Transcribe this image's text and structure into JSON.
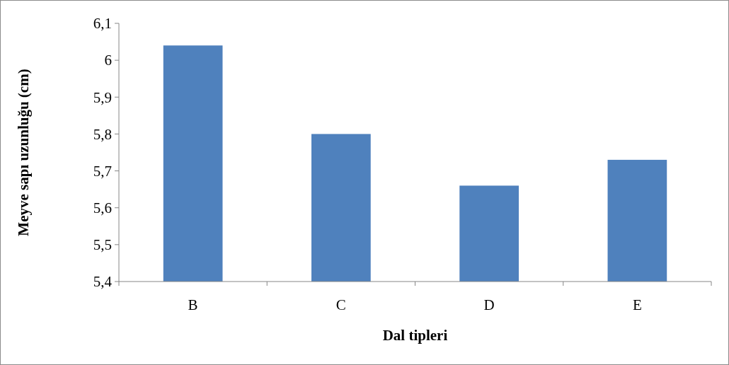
{
  "chart_data": {
    "type": "bar",
    "xlabel": "Dal tipleri",
    "ylabel": "Meyve sapı uzunluğu (cm)",
    "categories": [
      "B",
      "C",
      "D",
      "E"
    ],
    "values": [
      6.04,
      5.8,
      5.66,
      5.73
    ],
    "color": "#4f81bd",
    "ylim": [
      5.4,
      6.1
    ],
    "yticks": [
      {
        "value": 5.4,
        "label": "5,4"
      },
      {
        "value": 5.5,
        "label": "5,5"
      },
      {
        "value": 5.6,
        "label": "5,6"
      },
      {
        "value": 5.7,
        "label": "5,7"
      },
      {
        "value": 5.8,
        "label": "5,8"
      },
      {
        "value": 5.9,
        "label": "5,9"
      },
      6,
      {
        "value": 6.1,
        "label": "6,1"
      }
    ],
    "grid": false
  }
}
